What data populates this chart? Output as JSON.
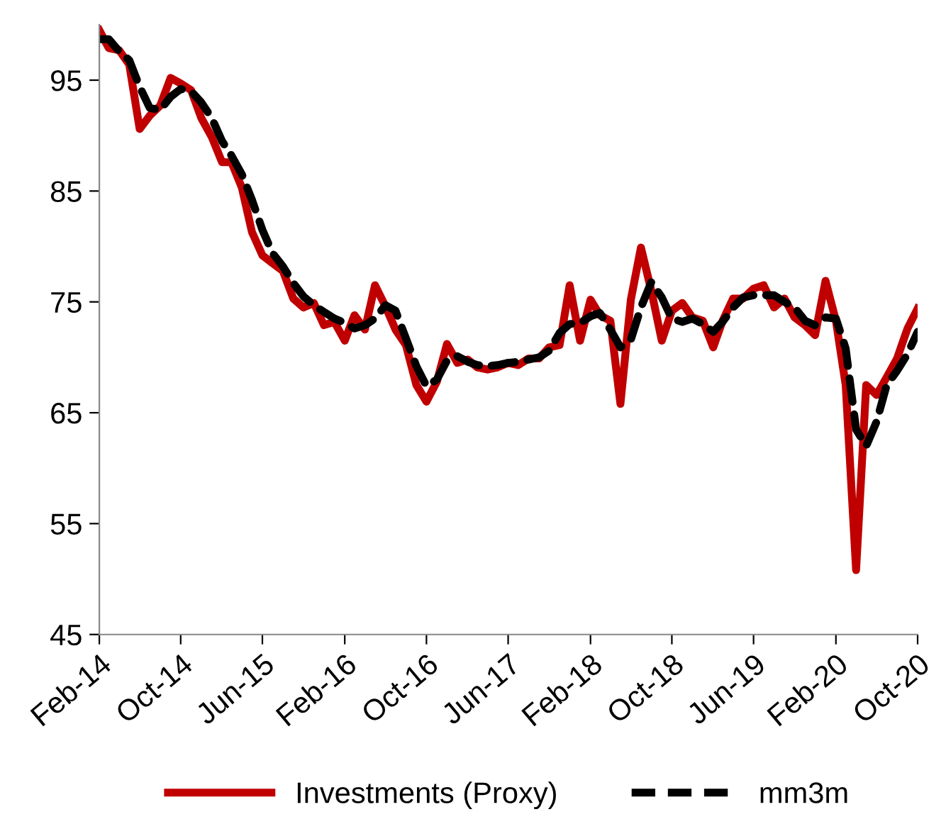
{
  "chart_data": {
    "type": "line",
    "x": [
      "2014-02",
      "2014-03",
      "2014-04",
      "2014-05",
      "2014-06",
      "2014-07",
      "2014-08",
      "2014-09",
      "2014-10",
      "2014-11",
      "2014-12",
      "2015-01",
      "2015-02",
      "2015-03",
      "2015-04",
      "2015-05",
      "2015-06",
      "2015-07",
      "2015-08",
      "2015-09",
      "2015-10",
      "2015-11",
      "2015-12",
      "2016-01",
      "2016-02",
      "2016-03",
      "2016-04",
      "2016-05",
      "2016-06",
      "2016-07",
      "2016-08",
      "2016-09",
      "2016-10",
      "2016-11",
      "2016-12",
      "2017-01",
      "2017-02",
      "2017-03",
      "2017-04",
      "2017-05",
      "2017-06",
      "2017-07",
      "2017-08",
      "2017-09",
      "2017-10",
      "2017-11",
      "2017-12",
      "2018-01",
      "2018-02",
      "2018-03",
      "2018-04",
      "2018-05",
      "2018-06",
      "2018-07",
      "2018-08",
      "2018-09",
      "2018-10",
      "2018-11",
      "2018-12",
      "2019-01",
      "2019-02",
      "2019-03",
      "2019-04",
      "2019-05",
      "2019-06",
      "2019-07",
      "2019-08",
      "2019-09",
      "2019-10",
      "2019-11",
      "2019-12",
      "2020-01",
      "2020-02",
      "2020-03",
      "2020-04",
      "2020-05",
      "2020-06",
      "2020-07",
      "2020-08",
      "2020-09",
      "2020-10"
    ],
    "series": [
      {
        "name": "Investments (Proxy)",
        "color": "#c00000",
        "line_style": "solid",
        "values": [
          99.5,
          97.9,
          97.7,
          96.4,
          90.6,
          91.8,
          92.7,
          95.2,
          94.7,
          94.1,
          91.6,
          89.9,
          87.6,
          87.6,
          85.3,
          81.3,
          79.2,
          78.5,
          77.8,
          75.3,
          74.5,
          74.9,
          72.9,
          73.2,
          71.5,
          73.8,
          72.5,
          76.5,
          74.6,
          72.5,
          71.1,
          67.5,
          66.0,
          67.8,
          71.2,
          69.5,
          69.8,
          69.1,
          68.9,
          69.1,
          69.5,
          69.3,
          69.9,
          69.9,
          70.9,
          71.1,
          76.5,
          71.5,
          75.2,
          73.8,
          73.3,
          65.8,
          75.2,
          79.9,
          76.0,
          71.5,
          74.2,
          74.9,
          73.6,
          73.3,
          70.9,
          73.3,
          75.3,
          75.3,
          76.2,
          76.5,
          74.5,
          75.3,
          73.6,
          72.9,
          72.0,
          76.9,
          73.3,
          67.5,
          50.8,
          67.5,
          66.6,
          68.2,
          69.9,
          72.6,
          74.4
        ]
      },
      {
        "name": "mm3m",
        "color": "#000000",
        "line_style": "dashed",
        "values": [
          98.7,
          98.7,
          97.6,
          96.8,
          94.4,
          92.5,
          92.3,
          93.5,
          94.2,
          94.0,
          93.0,
          91.6,
          89.5,
          88.2,
          86.5,
          84.2,
          81.5,
          79.4,
          78.2,
          76.7,
          75.5,
          74.7,
          74.1,
          73.5,
          73.1,
          72.6,
          72.9,
          73.5,
          74.7,
          74.2,
          71.7,
          69.2,
          67.4,
          68.0,
          69.7,
          70.1,
          69.6,
          69.3,
          69.2,
          69.3,
          69.5,
          69.6,
          69.8,
          70.0,
          70.6,
          72.2,
          73.0,
          73.1,
          73.7,
          74.0,
          72.5,
          70.9,
          71.6,
          74.5,
          76.8,
          75.4,
          73.5,
          73.2,
          73.5,
          73.0,
          72.3,
          73.2,
          74.5,
          75.4,
          75.6,
          75.6,
          75.6,
          75.0,
          74.5,
          73.3,
          72.9,
          73.6,
          73.5,
          70.8,
          63.5,
          62.0,
          64.2,
          67.5,
          68.8,
          70.3,
          72.3
        ]
      }
    ],
    "xlim": [
      "2014-02",
      "2020-10"
    ],
    "xticks": [
      {
        "value": "2014-02",
        "label": "Feb-14"
      },
      {
        "value": "2014-10",
        "label": "Oct-14"
      },
      {
        "value": "2015-06",
        "label": "Jun-15"
      },
      {
        "value": "2016-02",
        "label": "Feb-16"
      },
      {
        "value": "2016-10",
        "label": "Oct-16"
      },
      {
        "value": "2017-06",
        "label": "Jun-17"
      },
      {
        "value": "2018-02",
        "label": "Feb-18"
      },
      {
        "value": "2018-10",
        "label": "Oct-18"
      },
      {
        "value": "2019-06",
        "label": "Jun-19"
      },
      {
        "value": "2020-02",
        "label": "Feb-20"
      },
      {
        "value": "2020-10",
        "label": "Oct-20"
      }
    ],
    "ylim": [
      45,
      100
    ],
    "yticks": [
      45,
      55,
      65,
      75,
      85,
      95
    ],
    "grid": false,
    "legend": "bottom",
    "marker": "none"
  }
}
